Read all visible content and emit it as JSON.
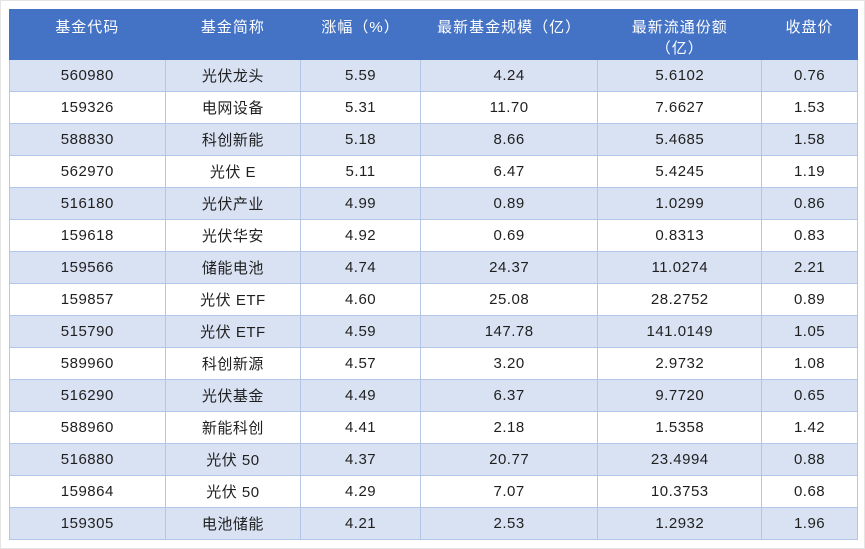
{
  "chart_data": {
    "type": "table",
    "columns": [
      "基金代码",
      "基金简称",
      "涨幅（%）",
      "最新基金规模（亿）",
      "最新流通份额\n（亿）",
      "收盘价"
    ],
    "rows": [
      [
        "560980",
        "光伏龙头",
        "5.59",
        "4.24",
        "5.6102",
        "0.76"
      ],
      [
        "159326",
        "电网设备",
        "5.31",
        "11.70",
        "7.6627",
        "1.53"
      ],
      [
        "588830",
        "科创新能",
        "5.18",
        "8.66",
        "5.4685",
        "1.58"
      ],
      [
        "562970",
        "光伏 E",
        "5.11",
        "6.47",
        "5.4245",
        "1.19"
      ],
      [
        "516180",
        "光伏产业",
        "4.99",
        "0.89",
        "1.0299",
        "0.86"
      ],
      [
        "159618",
        "光伏华安",
        "4.92",
        "0.69",
        "0.8313",
        "0.83"
      ],
      [
        "159566",
        "储能电池",
        "4.74",
        "24.37",
        "11.0274",
        "2.21"
      ],
      [
        "159857",
        "光伏 ETF",
        "4.60",
        "25.08",
        "28.2752",
        "0.89"
      ],
      [
        "515790",
        "光伏 ETF",
        "4.59",
        "147.78",
        "141.0149",
        "1.05"
      ],
      [
        "589960",
        "科创新源",
        "4.57",
        "3.20",
        "2.9732",
        "1.08"
      ],
      [
        "516290",
        "光伏基金",
        "4.49",
        "6.37",
        "9.7720",
        "0.65"
      ],
      [
        "588960",
        "新能科创",
        "4.41",
        "2.18",
        "1.5358",
        "1.42"
      ],
      [
        "516880",
        "光伏 50",
        "4.37",
        "20.77",
        "23.4994",
        "0.88"
      ],
      [
        "159864",
        "光伏 50",
        "4.29",
        "7.07",
        "10.3753",
        "0.68"
      ],
      [
        "159305",
        "电池储能",
        "4.21",
        "2.53",
        "1.2932",
        "1.96"
      ]
    ]
  },
  "colors": {
    "header_bg": "#4472C4",
    "header_text": "#FFFFFF",
    "row_stripe": "#D9E2F3",
    "row_plain": "#FFFFFF",
    "grid_border": "#B4C6E7",
    "body_text": "#1F1F1F"
  }
}
